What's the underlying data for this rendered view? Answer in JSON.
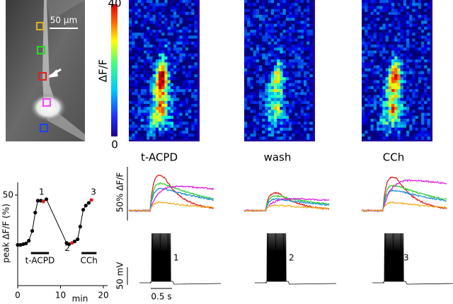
{
  "image_panel": {
    "scale_bar": "50 µm"
  },
  "colorbar": {
    "label": "ΔF/F",
    "max_label": "40",
    "min_label": "0"
  },
  "conditions": [
    "t-ACPD",
    "wash",
    "CCh"
  ],
  "fluorescence_scale": "50% ΔF/F",
  "voltage_scale": "50 mV",
  "time_scale": "0.5 s",
  "trace_labels": [
    "1",
    "2",
    "3"
  ],
  "chart_data": {
    "type": "line",
    "ylabel": "peak ΔF/F (%)",
    "xlabel": "min",
    "x": [
      0,
      0.65,
      1.3,
      1.95,
      2.6,
      3.4,
      4.1,
      4.7,
      5.4,
      6.0,
      6.7,
      11.4,
      12.0,
      12.7,
      13.3,
      14.0,
      14.6,
      15.3,
      15.9,
      16.6,
      17.2
    ],
    "values": [
      22.5,
      22.5,
      22.9,
      23.3,
      24.8,
      30.2,
      40.3,
      46.9,
      46.9,
      46.5,
      47.7,
      23.6,
      22.9,
      23.6,
      24.4,
      25.6,
      32.6,
      41.9,
      44.2,
      45.7,
      47.3
    ],
    "color": "#000000",
    "marker_colors": [
      "#000000",
      "#000000",
      "#000000",
      "#000000",
      "#000000",
      "#000000",
      "#000000",
      "#000000",
      "#000000",
      "#e02020",
      "#000000",
      "#000000",
      "#000000",
      "#e02020",
      "#000000",
      "#000000",
      "#000000",
      "#000000",
      "#000000",
      "#000000",
      "#e02020"
    ],
    "xlim": [
      0,
      20
    ],
    "xticks": [
      0,
      10,
      20
    ],
    "ylim": [
      0,
      57
    ],
    "yticks": [
      50
    ],
    "annotations": [
      {
        "text": "1",
        "x": 5.6,
        "y": 51.5
      },
      {
        "text": "2",
        "x": 11.6,
        "y": 20.5
      },
      {
        "text": "3",
        "x": 17.7,
        "y": 51.5
      }
    ],
    "application_bars": [
      {
        "label": "t-ACPD",
        "x": [
          3.1,
          7.3
        ]
      },
      {
        "label": "CCh",
        "x": [
          14.9,
          18.4
        ]
      }
    ]
  }
}
